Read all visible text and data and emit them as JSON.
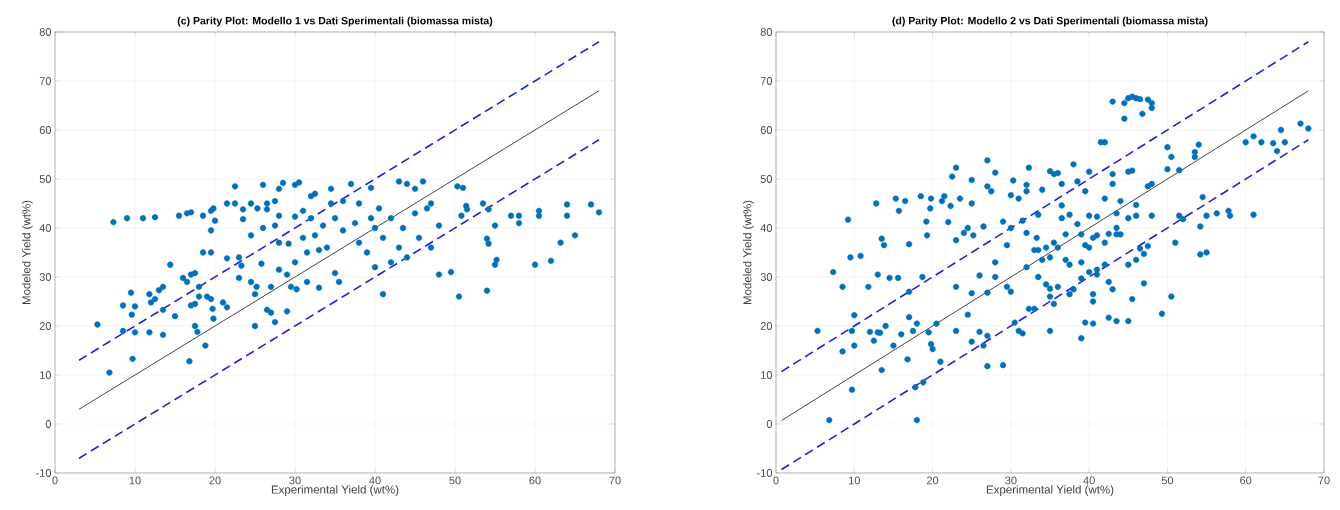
{
  "chart_data": [
    {
      "type": "scatter",
      "title": "(c) Parity Plot: Modello 1 vs Dati Sperimentali (biomassa mista)",
      "xlabel": "Experimental Yield (wt%)",
      "ylabel": "Modeled Yield (wt%)",
      "xlim": [
        0,
        70
      ],
      "ylim": [
        -10,
        80
      ],
      "xticks": [
        0,
        10,
        20,
        30,
        40,
        50,
        60,
        70
      ],
      "yticks": [
        -10,
        0,
        10,
        20,
        30,
        40,
        50,
        60,
        70,
        80
      ],
      "grid": true,
      "series": [
        {
          "marker": "circle",
          "color": "#0072bd",
          "x": [
            7.3,
            9,
            11,
            12.5,
            15.5,
            16.5,
            17,
            19.5,
            19.8,
            18.5,
            19.5,
            5.3,
            6.8,
            8.5,
            8.5,
            9.5,
            9.6,
            9.7,
            10,
            10,
            11.8,
            11.8,
            12,
            12.5,
            13,
            13.5,
            13.5,
            13.5,
            14.4,
            15,
            16,
            16.5,
            17,
            17.5,
            17,
            17.5,
            17.5,
            17.8,
            16.8,
            18,
            18,
            18.5,
            19.5,
            19,
            19.5,
            19.7,
            19.8,
            18.8,
            21,
            21.5,
            20,
            21.5,
            21.5,
            22.5,
            22.5,
            23,
            23.3,
            23,
            23.5,
            23.5,
            24.5,
            24.5,
            24.5,
            25,
            25,
            25.2,
            25.3,
            25.8,
            26,
            26,
            26.5,
            26.5,
            26.5,
            27,
            27,
            27.5,
            27.5,
            27.5,
            28,
            28,
            28,
            28,
            28.5,
            29,
            29,
            29.2,
            29.5,
            30,
            30,
            30,
            30.2,
            30.5,
            31,
            31,
            31.5,
            31.5,
            32,
            32,
            32.5,
            32.5,
            33,
            33,
            33.5,
            34,
            34.5,
            34.5,
            35,
            35,
            35.5,
            36,
            36,
            37,
            37.5,
            38,
            38,
            39,
            39.5,
            39.5,
            40,
            40,
            40.5,
            41,
            41,
            42,
            42,
            43,
            43,
            43.5,
            44,
            44,
            45,
            45,
            45.5,
            46,
            46.5,
            47,
            47,
            48,
            48,
            49.5,
            50.3,
            50.5,
            50.8,
            51,
            51.4,
            51.5,
            53.5,
            54,
            54,
            54.2,
            54.2,
            55,
            55,
            55.2,
            57,
            58,
            58,
            60,
            60.5,
            60.5,
            62,
            63.2,
            64,
            64,
            65,
            67,
            68
          ],
          "values": [
            41.2,
            42,
            42,
            42.2,
            42.5,
            43,
            43.2,
            43.5,
            44,
            42.5,
            39.5,
            20.3,
            10.5,
            24.2,
            19,
            26.8,
            22.3,
            13.3,
            24,
            18.7,
            18.7,
            26.5,
            24.8,
            25.5,
            27.3,
            28,
            18.2,
            23.3,
            32.5,
            22,
            29.8,
            29,
            30.5,
            30.8,
            24.2,
            24.5,
            20,
            18.8,
            12.8,
            28,
            26,
            35,
            35,
            26,
            25.5,
            23.5,
            21.5,
            16,
            24.8,
            23.8,
            41.5,
            45,
            33.8,
            48.5,
            45,
            34,
            32.3,
            29.8,
            41.8,
            43.8,
            38.5,
            29,
            45,
            20,
            26.5,
            28,
            44,
            32.7,
            48.8,
            40,
            45,
            43.8,
            23.3,
            28,
            22.7,
            20.8,
            45.5,
            40.5,
            48,
            42.5,
            37,
            31.5,
            49.2,
            30.5,
            23,
            36.8,
            28,
            48.8,
            42.3,
            33,
            27.5,
            49.3,
            43.5,
            38,
            35,
            29,
            46.5,
            42,
            47,
            38.5,
            35.5,
            27.8,
            40.5,
            36,
            48,
            45,
            42,
            30.8,
            29,
            39.5,
            45.5,
            49,
            41,
            37,
            45,
            35,
            48.2,
            42,
            40,
            32,
            44,
            26.5,
            38,
            42,
            33,
            49.5,
            36,
            40,
            49,
            34,
            48,
            43,
            38,
            49.5,
            44,
            45,
            36,
            40.5,
            30.5,
            31,
            48.5,
            26,
            42.5,
            48.2,
            44.5,
            43.8,
            45,
            37.8,
            27.2,
            43.8,
            36.8,
            40.5,
            32.5,
            33.5,
            42.5,
            42.5,
            41,
            32.5,
            43.5,
            42.5,
            33.3,
            37,
            44.8,
            42.5,
            38.5,
            44.8,
            43.2
          ]
        },
        {
          "type": "line",
          "color": "#333333",
          "x": [
            3,
            68
          ],
          "values": [
            3,
            68
          ]
        },
        {
          "type": "line",
          "line_style": "dashed",
          "color": "#1f1ff0",
          "x": [
            3,
            68
          ],
          "values": [
            13,
            78
          ]
        },
        {
          "type": "line",
          "line_style": "dashed",
          "color": "#1f1ff0",
          "x": [
            3,
            68
          ],
          "values": [
            -7,
            58
          ]
        }
      ]
    },
    {
      "type": "scatter",
      "title": "(d) Parity Plot: Modello 2 vs Dati Sperimentali (biomassa mista)",
      "xlabel": "Experimental Yield (wt%)",
      "ylabel": "Modeled Yield (wt%)",
      "xlim": [
        0,
        70
      ],
      "ylim": [
        -10,
        80
      ],
      "xticks": [
        0,
        10,
        20,
        30,
        40,
        50,
        60,
        70
      ],
      "yticks": [
        -10,
        0,
        10,
        20,
        30,
        40,
        50,
        60,
        70,
        80
      ],
      "grid": true,
      "series": [
        {
          "marker": "circle",
          "color": "#0072bd",
          "x": [
            5.3,
            6.8,
            7.3,
            8.5,
            8.5,
            9.2,
            9.5,
            9.7,
            9.7,
            10,
            10,
            10.8,
            11.8,
            12,
            12.5,
            12.8,
            13,
            13,
            13.3,
            13.5,
            13.5,
            13.8,
            14,
            14.5,
            15,
            15.3,
            15.6,
            15.7,
            16,
            16.5,
            16.8,
            17,
            17,
            17,
            17.5,
            17.8,
            18,
            18,
            18.5,
            18.7,
            18.8,
            19.2,
            19.3,
            19.5,
            19.7,
            19.8,
            19.8,
            20,
            20.5,
            21,
            21.2,
            21.5,
            22,
            22.3,
            22.5,
            23,
            23,
            23,
            23,
            23.5,
            24,
            24.5,
            24.5,
            25,
            25,
            25,
            25,
            25.2,
            26,
            26,
            26.5,
            26.5,
            27,
            27,
            27,
            27,
            27,
            27.5,
            28,
            28,
            28,
            29,
            29,
            29.5,
            29.5,
            30,
            30,
            30,
            30.3,
            30.5,
            31,
            31,
            31.5,
            31.5,
            32,
            32,
            32,
            32.3,
            32.3,
            33,
            43,
            44.5,
            45,
            45.5,
            46,
            46.5,
            47.5,
            48,
            48,
            44.5,
            46.8,
            41.5,
            42,
            60,
            61,
            62,
            63.5,
            64,
            64.5,
            65,
            67,
            68,
            50,
            50.5,
            51.5,
            53.5,
            53.5,
            54,
            50,
            45,
            45.5,
            38,
            40,
            35,
            35.5,
            36,
            36.5,
            38.5,
            39.5,
            43,
            43,
            48,
            47.5,
            46,
            42,
            44,
            36.5,
            32,
            34,
            33.5,
            33.3,
            33.5,
            34.5,
            35.5,
            36.5,
            37,
            37.5,
            38.5,
            39,
            39.5,
            40,
            40.5,
            41,
            42,
            42.5,
            43.5,
            44,
            40,
            41,
            43.5,
            43.5,
            45,
            46,
            48,
            54.2,
            54.2,
            55,
            54.5,
            55,
            56.3,
            57.8,
            58,
            61,
            51,
            51.5,
            52,
            34,
            35,
            36,
            37,
            37.5,
            39,
            40,
            41,
            42,
            42.5,
            43,
            45,
            46,
            46.5,
            47,
            47.5,
            47,
            33.5,
            34.5,
            35,
            35.5,
            35,
            36,
            37.5,
            38,
            39,
            40.5,
            40.5,
            41,
            39.5,
            40.5,
            42.5,
            43.5,
            45,
            45.5,
            49.3,
            50.5,
            35,
            39,
            33
          ],
          "values": [
            19,
            0.8,
            31,
            28,
            14.8,
            41.7,
            34,
            19,
            7,
            22.2,
            16,
            34.3,
            28,
            18.8,
            17,
            45,
            30.5,
            18.7,
            18.6,
            11,
            37.8,
            36.5,
            20,
            29.8,
            16,
            46,
            29.8,
            43.5,
            18.3,
            45.5,
            13.2,
            36.7,
            27,
            21.8,
            19,
            7.5,
            0.8,
            20.5,
            46.5,
            30,
            8.5,
            41.3,
            38.5,
            18.7,
            44,
            46,
            16.3,
            15.3,
            20.5,
            12.7,
            45.5,
            46.5,
            41.2,
            44.5,
            50.5,
            52.3,
            37.5,
            28,
            19,
            46,
            39,
            22.3,
            40,
            49.8,
            45,
            26.7,
            16.8,
            38.5,
            30.3,
            18.8,
            40.3,
            16,
            53.8,
            48.5,
            26.8,
            11.8,
            18,
            47.5,
            51.3,
            33,
            30,
            41.3,
            12,
            36.5,
            28,
            46.7,
            40,
            27,
            49.7,
            20.7,
            46,
            19,
            18.5,
            41.5,
            39,
            48.8,
            32,
            52.3,
            23.5,
            35.5,
            65.8,
            65.5,
            66.5,
            66.8,
            66.5,
            66.3,
            66.2,
            65.5,
            64.5,
            62.3,
            63.3,
            57.5,
            57.5,
            57.5,
            58.7,
            57.5,
            57.3,
            55.7,
            60,
            57.5,
            61.3,
            60.3,
            56.5,
            54.5,
            51.8,
            55.5,
            54.5,
            57,
            52,
            51.5,
            51.7,
            53,
            51.5,
            51.6,
            51,
            51.2,
            49,
            49.5,
            47.5,
            51,
            49,
            49,
            48.5,
            44.7,
            46,
            45.5,
            44.6,
            47.5,
            47.8,
            42.7,
            38,
            35.5,
            36,
            37,
            42,
            38.7,
            42.7,
            40.8,
            38.7,
            36.5,
            36,
            38,
            38.5,
            37,
            38.8,
            38.7,
            38.7,
            42.5,
            42.3,
            40,
            43,
            42,
            42.5,
            42.5,
            40.3,
            34.6,
            35,
            46.3,
            42.5,
            43,
            43.5,
            42.5,
            42.7,
            37,
            42.5,
            41.8,
            33.5,
            34,
            36,
            33.5,
            32.5,
            33,
            31,
            31.5,
            32.5,
            29,
            27.5,
            32.5,
            33.5,
            35.8,
            34.7,
            36.3,
            28.7,
            30,
            28.5,
            26,
            24.5,
            27.6,
            28,
            26.5,
            27.5,
            29.7,
            25,
            26.5,
            30.5,
            20.7,
            20.5,
            21.7,
            21,
            21,
            25.5,
            22.5,
            26,
            19,
            17.5,
            23.5
          ]
        },
        {
          "type": "line",
          "color": "#333333",
          "x": [
            0.7,
            68
          ],
          "values": [
            0.7,
            68
          ]
        },
        {
          "type": "line",
          "line_style": "dashed",
          "color": "#1f1ff0",
          "x": [
            0.7,
            68
          ],
          "values": [
            10.7,
            78
          ]
        },
        {
          "type": "line",
          "line_style": "dashed",
          "color": "#1f1ff0",
          "x": [
            0.7,
            68
          ],
          "values": [
            -9.3,
            58
          ]
        }
      ]
    }
  ]
}
